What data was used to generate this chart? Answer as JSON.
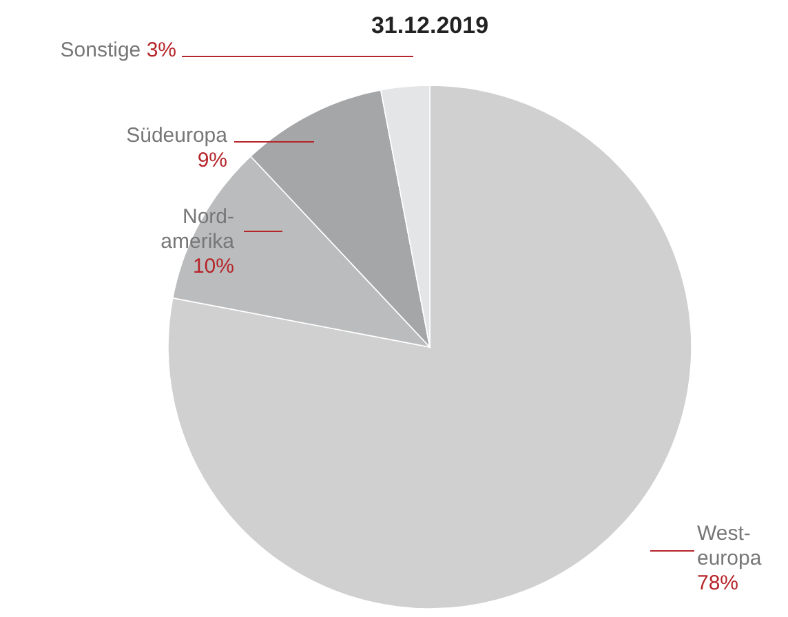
{
  "chart_data": {
    "type": "pie",
    "title": "31.12.2019",
    "categories": [
      "West-\neuropa",
      "Nord-\namerika",
      "Südeuropa",
      "Sonstige"
    ],
    "values": [
      78,
      10,
      9,
      3
    ],
    "colors": [
      "#d0d0d0",
      "#bbbcbd",
      "#a4a6a8",
      "#e4e5e7"
    ],
    "value_labels": [
      "78%",
      "10%",
      "9%",
      "3%"
    ]
  }
}
